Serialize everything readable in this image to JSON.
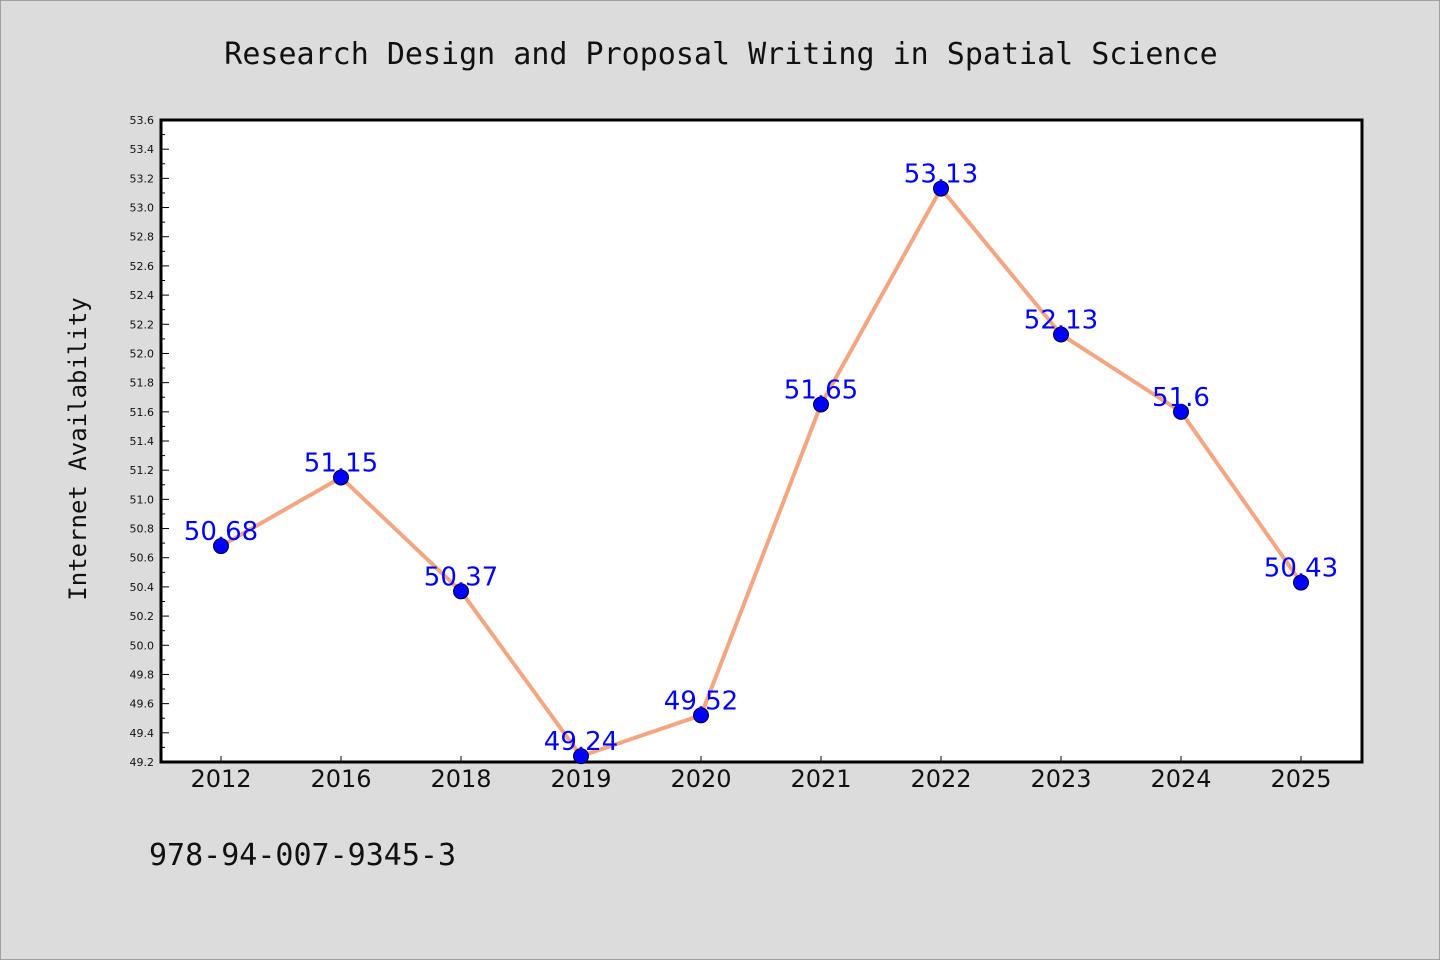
{
  "footer": {
    "isbn": "978-94-007-9345-3"
  },
  "chart_data": {
    "type": "line",
    "title": "Research Design and Proposal Writing in Spatial Science",
    "xlabel": "",
    "ylabel": "Internet Availability",
    "categories": [
      "2012",
      "2016",
      "2018",
      "2019",
      "2020",
      "2021",
      "2022",
      "2023",
      "2024",
      "2025"
    ],
    "values": [
      50.68,
      51.15,
      50.37,
      49.24,
      49.52,
      51.65,
      53.13,
      52.13,
      51.6,
      50.43
    ],
    "data_labels": [
      "50.68",
      "51.15",
      "50.37",
      "49.24",
      "49.52",
      "51.65",
      "53.13",
      "52.13",
      "51.6",
      "50.43"
    ],
    "yticks": [
      "49.2",
      "49.4",
      "49.6",
      "49.8",
      "50.0",
      "50.2",
      "50.4",
      "50.6",
      "50.8",
      "51.0",
      "51.2",
      "51.4",
      "51.6",
      "51.8",
      "52.0",
      "52.2",
      "52.4",
      "52.6",
      "52.8",
      "53.0",
      "53.2",
      "53.4",
      "53.6"
    ],
    "ylim": [
      49.2,
      53.6
    ],
    "grid": false,
    "legend": "none",
    "line_color": "#f4a582",
    "marker_color": "#0000ff",
    "label_color": "#0000ff",
    "plot_background": "#ffffff",
    "page_background": "#dcdcdc"
  }
}
